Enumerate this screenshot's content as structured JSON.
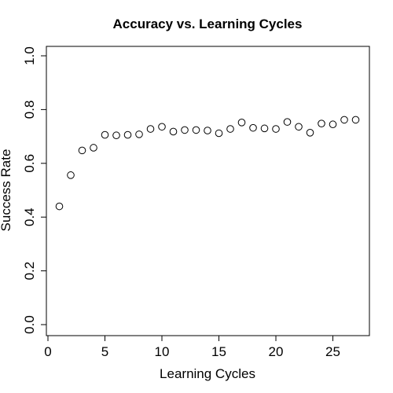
{
  "chart_data": {
    "type": "scatter",
    "title": "Accuracy vs. Learning Cycles",
    "xlabel": "Learning Cycles",
    "ylabel": "Success Rate",
    "xlim": [
      0,
      28
    ],
    "ylim": [
      0,
      1
    ],
    "x_ticks": [
      0,
      5,
      10,
      15,
      20,
      25
    ],
    "y_ticks": [
      0.0,
      0.2,
      0.4,
      0.6,
      0.8,
      1.0
    ],
    "x_tick_labels": [
      "0",
      "5",
      "10",
      "15",
      "20",
      "25"
    ],
    "y_tick_labels": [
      "0.0",
      "0.2",
      "0.4",
      "0.6",
      "0.8",
      "1.0"
    ],
    "grid": false,
    "marker": "open-circle",
    "series": [
      {
        "x": [
          1,
          2,
          3,
          4,
          5,
          6,
          7,
          8,
          9,
          10,
          11,
          12,
          13,
          14,
          15,
          16,
          17,
          18,
          19,
          20,
          21,
          22,
          23,
          24,
          25,
          26,
          27
        ],
        "values": [
          0.44,
          0.556,
          0.648,
          0.658,
          0.706,
          0.704,
          0.706,
          0.708,
          0.728,
          0.736,
          0.718,
          0.724,
          0.724,
          0.722,
          0.712,
          0.728,
          0.752,
          0.732,
          0.73,
          0.728,
          0.754,
          0.736,
          0.714,
          0.748,
          0.745,
          0.762,
          0.762
        ]
      }
    ]
  }
}
